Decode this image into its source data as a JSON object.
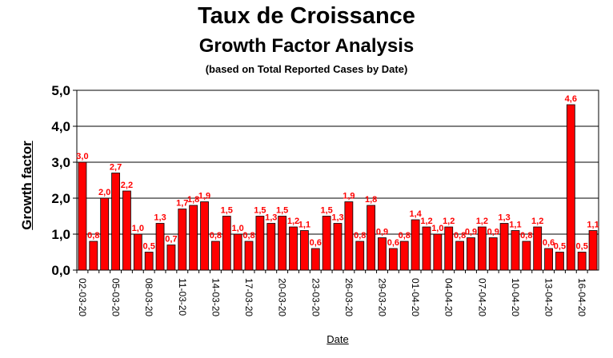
{
  "chart_data": {
    "type": "bar",
    "title": "Taux de Croissance",
    "subtitle": "Growth Factor Analysis",
    "note": "(based on Total Reported Cases by Date)",
    "xlabel": "Date",
    "ylabel": "Growth factor",
    "ylim": [
      0,
      5
    ],
    "yticks": [
      "0,0",
      "1,0",
      "2,0",
      "3,0",
      "4,0",
      "5,0"
    ],
    "grid": true,
    "bar_color": "#ff0000",
    "label_color": "#ff0000",
    "categories": [
      "02-03-20",
      "03-03-20",
      "04-03-20",
      "05-03-20",
      "06-03-20",
      "07-03-20",
      "08-03-20",
      "09-03-20",
      "10-03-20",
      "11-03-20",
      "12-03-20",
      "13-03-20",
      "14-03-20",
      "15-03-20",
      "16-03-20",
      "17-03-20",
      "18-03-20",
      "19-03-20",
      "20-03-20",
      "21-03-20",
      "22-03-20",
      "23-03-20",
      "24-03-20",
      "25-03-20",
      "26-03-20",
      "27-03-20",
      "28-03-20",
      "29-03-20",
      "30-03-20",
      "31-03-20",
      "01-04-20",
      "02-04-20",
      "03-04-20",
      "04-04-20",
      "05-04-20",
      "06-04-20",
      "07-04-20",
      "08-04-20",
      "09-04-20",
      "10-04-20",
      "11-04-20",
      "12-04-20",
      "13-04-20",
      "14-04-20",
      "15-04-20",
      "16-04-20",
      "17-04-20"
    ],
    "tick_labels": [
      "02-03-20",
      "05-03-20",
      "08-03-20",
      "11-03-20",
      "14-03-20",
      "17-03-20",
      "20-03-20",
      "23-03-20",
      "26-03-20",
      "29-03-20",
      "01-04-20",
      "04-04-20",
      "07-04-20",
      "10-04-20",
      "13-04-20",
      "16-04-20"
    ],
    "values": [
      3.0,
      0.8,
      2.0,
      2.7,
      2.2,
      1.0,
      0.5,
      1.3,
      0.7,
      1.7,
      1.8,
      1.9,
      0.8,
      1.5,
      1.0,
      0.8,
      1.5,
      1.3,
      1.5,
      1.2,
      1.1,
      0.6,
      1.5,
      1.3,
      1.9,
      0.8,
      1.8,
      0.9,
      0.6,
      0.8,
      1.4,
      1.2,
      1.0,
      1.2,
      0.8,
      0.9,
      1.2,
      0.9,
      1.3,
      1.1,
      0.8,
      1.2,
      0.6,
      0.5,
      4.6,
      0.5,
      1.1
    ],
    "value_labels": [
      "3,0",
      "0,8",
      "2,0",
      "2,7",
      "2,2",
      "1,0",
      "0,5",
      "1,3",
      "0,7",
      "1,7",
      "1,8",
      "1,9",
      "0,8",
      "1,5",
      "1,0",
      "0,8",
      "1,5",
      "1,3",
      "1,5",
      "1,2",
      "1,1",
      "0,6",
      "1,5",
      "1,3",
      "1,9",
      "0,8",
      "1,8",
      "0,9",
      "0,6",
      "0,8",
      "1,4",
      "1,2",
      "1,0",
      "1,2",
      "0,8",
      "0,9",
      "1,2",
      "0,9",
      "1,3",
      "1,1",
      "0,8",
      "1,2",
      "0,6",
      "0,5",
      "4,6",
      "0,5",
      "1,1"
    ]
  }
}
